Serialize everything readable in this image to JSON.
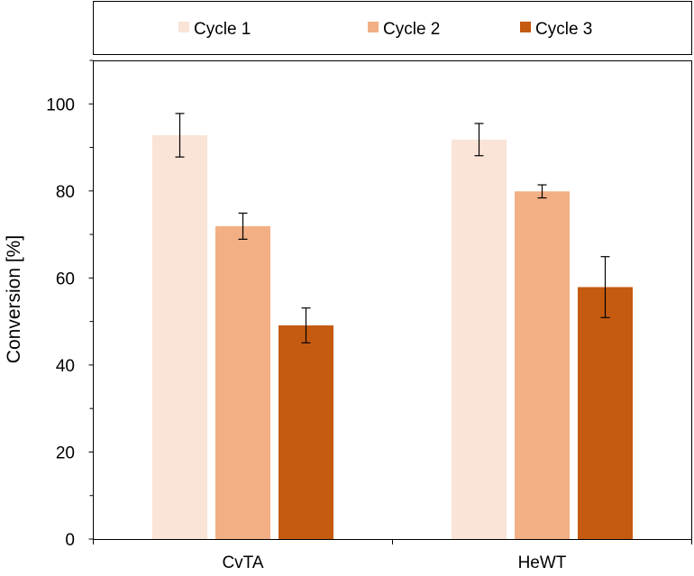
{
  "chart_data": {
    "type": "bar",
    "categories": [
      "CvTA",
      "HeWT"
    ],
    "series": [
      {
        "name": "Cycle 1",
        "color": "#FAE3D7",
        "values": [
          92.8,
          91.8
        ],
        "errors": [
          5.0,
          3.7
        ]
      },
      {
        "name": "Cycle 2",
        "color": "#F2AF83",
        "values": [
          71.9,
          79.9
        ],
        "errors": [
          3.0,
          1.5
        ]
      },
      {
        "name": "Cycle 3",
        "color": "#C55A11",
        "values": [
          49.1,
          57.9
        ],
        "errors": [
          4.0,
          7.0
        ]
      }
    ],
    "ylabel": "Conversion [%]",
    "xlabel": "",
    "ylim": [
      0,
      110
    ],
    "yticks": [
      0,
      20,
      40,
      60,
      80,
      100
    ],
    "ytick_labels": [
      "0",
      "20",
      "40",
      "60",
      "80",
      "100"
    ],
    "minor_yticks": [
      10,
      30,
      50,
      70,
      90,
      110
    ],
    "grid": false,
    "legend_position": "top"
  }
}
